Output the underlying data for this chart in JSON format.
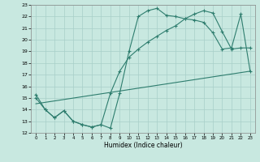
{
  "title": "",
  "xlabel": "Humidex (Indice chaleur)",
  "bg_color": "#c8e8e0",
  "grid_color": "#a8cfc8",
  "line_color": "#2e7d6e",
  "xlim": [
    -0.5,
    23.5
  ],
  "ylim": [
    12,
    23
  ],
  "xticks": [
    0,
    1,
    2,
    3,
    4,
    5,
    6,
    7,
    8,
    9,
    10,
    11,
    12,
    13,
    14,
    15,
    16,
    17,
    18,
    19,
    20,
    21,
    22,
    23
  ],
  "yticks": [
    12,
    13,
    14,
    15,
    16,
    17,
    18,
    19,
    20,
    21,
    22,
    23
  ],
  "line1_x": [
    0,
    1,
    2,
    3,
    4,
    5,
    6,
    7,
    8,
    9,
    10,
    11,
    12,
    13,
    14,
    15,
    16,
    17,
    18,
    19,
    20,
    21,
    22,
    23
  ],
  "line1_y": [
    15.3,
    14.0,
    13.3,
    13.9,
    13.0,
    12.7,
    12.5,
    12.7,
    12.4,
    15.4,
    19.0,
    22.0,
    22.5,
    22.7,
    22.1,
    22.0,
    21.8,
    21.7,
    21.5,
    20.6,
    19.2,
    19.3,
    22.2,
    17.3
  ],
  "line2_x": [
    0,
    1,
    2,
    3,
    4,
    5,
    6,
    7,
    8,
    9,
    10,
    11,
    12,
    13,
    14,
    15,
    16,
    17,
    18,
    19,
    20,
    21,
    22,
    23
  ],
  "line2_y": [
    15.0,
    14.0,
    13.3,
    13.9,
    13.0,
    12.7,
    12.5,
    12.7,
    15.4,
    17.3,
    18.5,
    19.2,
    19.8,
    20.3,
    20.8,
    21.2,
    21.8,
    22.2,
    22.5,
    22.3,
    20.7,
    19.2,
    19.3,
    19.3
  ],
  "line3_x": [
    0,
    23
  ],
  "line3_y": [
    14.5,
    17.3
  ]
}
